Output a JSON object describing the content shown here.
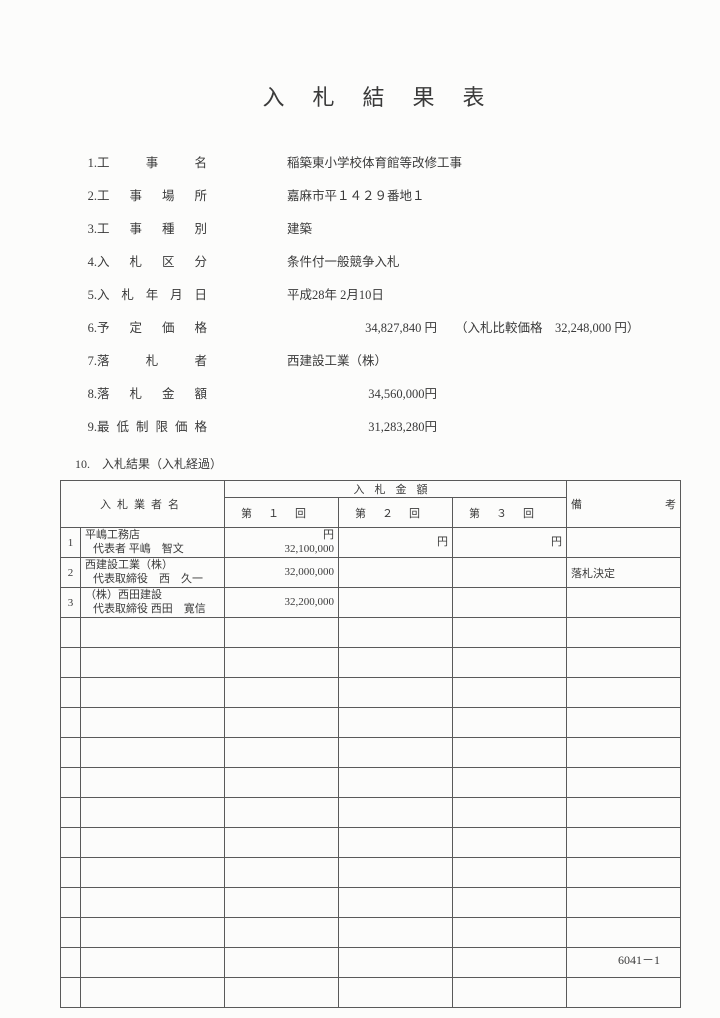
{
  "title": "入札結果表",
  "fields": [
    {
      "num": "1.",
      "label": "工事名",
      "label_w": "110px",
      "value": "稲築東小学校体育館等改修工事"
    },
    {
      "num": "2.",
      "label": "工事場所",
      "label_w": "110px",
      "value": "嘉麻市平１４２９番地１"
    },
    {
      "num": "3.",
      "label": "工事種別",
      "label_w": "110px",
      "value": "建築"
    },
    {
      "num": "4.",
      "label": "入札区分",
      "label_w": "110px",
      "value": "条件付一般競争入札"
    },
    {
      "num": "5.",
      "label": "入札年月日",
      "label_w": "110px",
      "value": "平成28年 2月10日"
    },
    {
      "num": "6.",
      "label": "予定価格",
      "label_w": "110px",
      "value_amount": "34,827,840 円",
      "extra": "（入札比較価格　32,248,000 円）"
    },
    {
      "num": "7.",
      "label": "落札者",
      "label_w": "110px",
      "value": "西建設工業（株）"
    },
    {
      "num": "8.",
      "label": "落札金額",
      "label_w": "110px",
      "value_amount": "34,560,000円"
    },
    {
      "num": "9.",
      "label": "最低制限価格",
      "label_w": "110px",
      "value_amount": "31,283,280円"
    }
  ],
  "section10": "10.　入札結果（入札経過）",
  "table": {
    "headers": {
      "bidder": "入札業者名",
      "amount": "入札金額",
      "round1": "第１回",
      "round2": "第２回",
      "round3": "第３回",
      "remark": "備考"
    },
    "rows": [
      {
        "num": "1",
        "name1": "平嶋工務店",
        "name2": "代表者 平嶋　智文",
        "r1_unit": "円",
        "r1": "32,100,000",
        "r2_unit": "円",
        "r2": "",
        "r3_unit": "円",
        "r3": "",
        "remark": ""
      },
      {
        "num": "2",
        "name1": "西建設工業（株）",
        "name2": "代表取締役　西　久一",
        "r1": "32,000,000",
        "r2": "",
        "r3": "",
        "remark": "落札決定"
      },
      {
        "num": "3",
        "name1": "（株）西田建設",
        "name2": "代表取締役 西田　寛信",
        "r1": "32,200,000",
        "r2": "",
        "r3": "",
        "remark": ""
      }
    ],
    "empty_rows": 13
  },
  "footer": "6041－1"
}
